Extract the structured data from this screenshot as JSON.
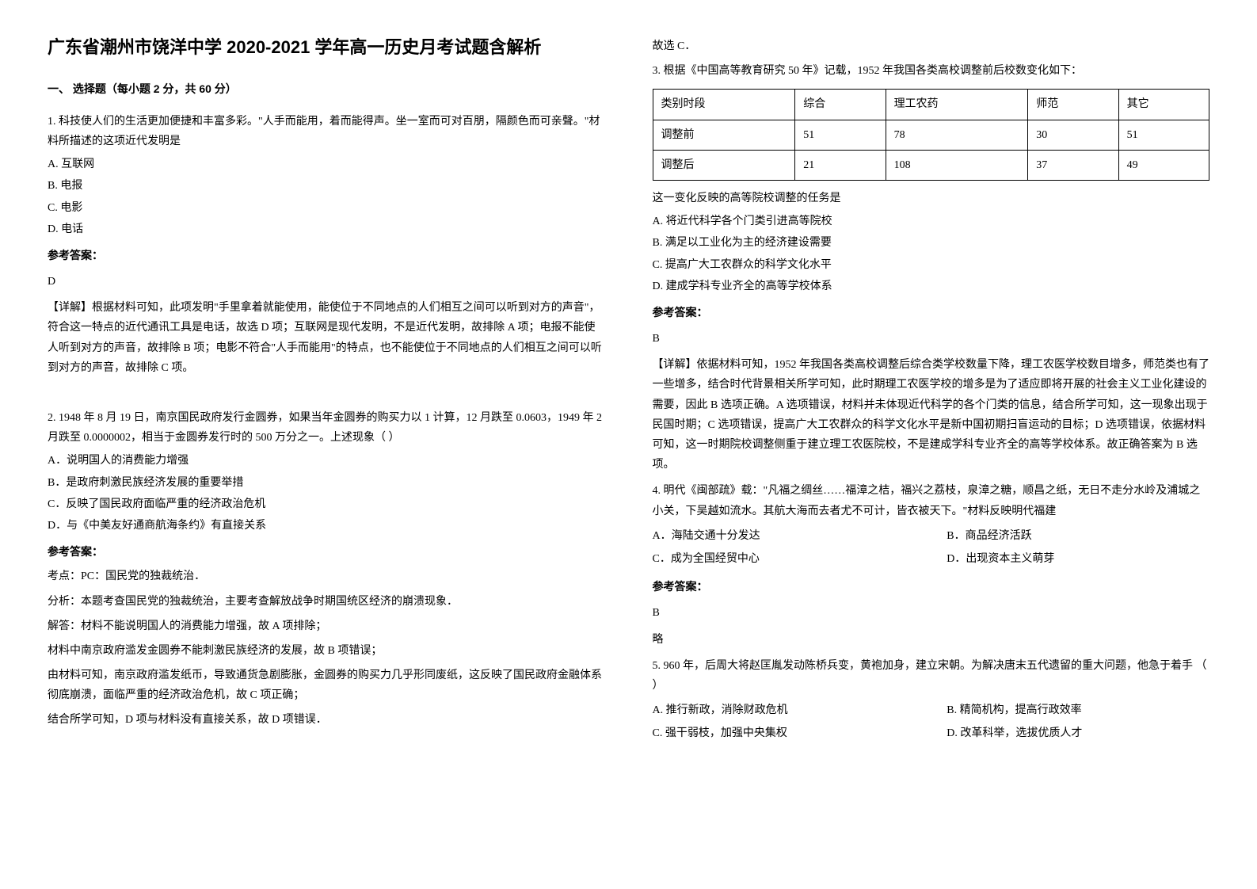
{
  "title": "广东省潮州市饶洋中学 2020-2021 学年高一历史月考试题含解析",
  "section1": {
    "header": "一、 选择题（每小题 2 分，共 60 分）"
  },
  "q1": {
    "text": "1. 科技使人们的生活更加便捷和丰富多彩。\"人手而能用，着而能得声。坐一室而可对百朋，隔颜色而可亲聲。\"材料所描述的这项近代发明是",
    "optA": "A. 互联网",
    "optB": "B. 电报",
    "optC": "C. 电影",
    "optD": "D. 电话",
    "answerLabel": "参考答案：",
    "answer": "D",
    "explanation": "【详解】根据材料可知，此项发明\"手里拿着就能使用，能使位于不同地点的人们相互之间可以听到对方的声音\"，符合这一特点的近代通讯工具是电话，故选 D 项；互联网是现代发明，不是近代发明，故排除 A 项；电报不能使人听到对方的声音，故排除 B 项；电影不符合\"人手而能用\"的特点，也不能使位于不同地点的人们相互之间可以听到对方的声音，故排除 C 项。"
  },
  "q2": {
    "text": "2. 1948 年 8 月 19 日，南京国民政府发行金圆券，如果当年金圆券的购买力以 1 计算，12 月跌至 0.0603，1949 年 2 月跌至 0.0000002，相当于金圆券发行时的 500 万分之一。上述现象（    ）",
    "optA": "A．说明国人的消费能力增强",
    "optB": "B．是政府刺激民族经济发展的重要举措",
    "optC": "C．反映了国民政府面临严重的经济政治危机",
    "optD": "D．与《中美友好通商航海条约》有直接关系",
    "answerLabel": "参考答案：",
    "kaodian": "考点：PC：国民党的独裁统治．",
    "fenxi": "分析：本题考查国民党的独裁统治，主要考查解放战争时期国统区经济的崩溃现象．",
    "jieda1": "解答：材料不能说明国人的消费能力增强，故 A 项排除；",
    "jieda2": "材料中南京政府滥发金圆券不能刺激民族经济的发展，故 B 项错误；",
    "jieda3": "由材料可知，南京政府滥发纸币，导致通货急剧膨胀，金圆券的购买力几乎形同废纸，这反映了国民政府金融体系彻底崩溃，面临严重的经济政治危机，故 C 项正确；",
    "jieda4": "结合所学可知，D 项与材料没有直接关系，故 D 项错误．",
    "guxuan": "故选 C．"
  },
  "q3": {
    "text": "3. 根据《中国高等教育研究 50 年》记载，1952 年我国各类高校调整前后校数变化如下：",
    "table": {
      "headers": [
        "类别时段",
        "综合",
        "理工农药",
        "师范",
        "其它"
      ],
      "rows": [
        [
          "调整前",
          "51",
          "78",
          "30",
          "51"
        ],
        [
          "调整后",
          "21",
          "108",
          "37",
          "49"
        ]
      ]
    },
    "text2": "这一变化反映的高等院校调整的任务是",
    "optA": "A. 将近代科学各个门类引进高等院校",
    "optB": "B. 满足以工业化为主的经济建设需要",
    "optC": "C. 提高广大工农群众的科学文化水平",
    "optD": "D. 建成学科专业齐全的高等学校体系",
    "answerLabel": "参考答案：",
    "answer": "B",
    "explanation": "【详解】依据材料可知，1952 年我国各类高校调整后综合类学校数量下降，理工农医学校数目增多，师范类也有了一些增多，结合时代背景相关所学可知，此时期理工农医学校的增多是为了适应即将开展的社会主义工业化建设的需要，因此 B 选项正确。A 选项错误，材料并未体现近代科学的各个门类的信息，结合所学可知，这一现象出现于民国时期；C 选项错误，提高广大工农群众的科学文化水平是新中国初期扫盲运动的目标；D 选项错误，依据材料可知，这一时期院校调整侧重于建立理工农医院校，不是建成学科专业齐全的高等学校体系。故正确答案为 B 选项。"
  },
  "q4": {
    "text": "4. 明代《闽部疏》载：\"凡福之绸丝……福漳之桔，福兴之荔枝，泉漳之糖，顺昌之纸，无日不走分水岭及浦城之小关，下吴越如流水。其航大海而去者尤不可计，皆衣被天下。\"材料反映明代福建",
    "optA": "A．海陆交通十分发达",
    "optB": "B．商品经济活跃",
    "optC": "C．成为全国经贸中心",
    "optD": "D．出现资本主义萌芽",
    "answerLabel": "参考答案：",
    "answer": "B",
    "explanation": "略"
  },
  "q5": {
    "text": "5. 960 年，后周大将赵匡胤发动陈桥兵变，黄袍加身，建立宋朝。为解决唐末五代遗留的重大问题，他急于着手                                                             （      ）",
    "optA": "A. 推行新政，消除财政危机",
    "optB": "B. 精简机构，提高行政效率",
    "optC": "C. 强干弱枝，加强中央集权",
    "optD": "D. 改革科举，选拔优质人才"
  }
}
